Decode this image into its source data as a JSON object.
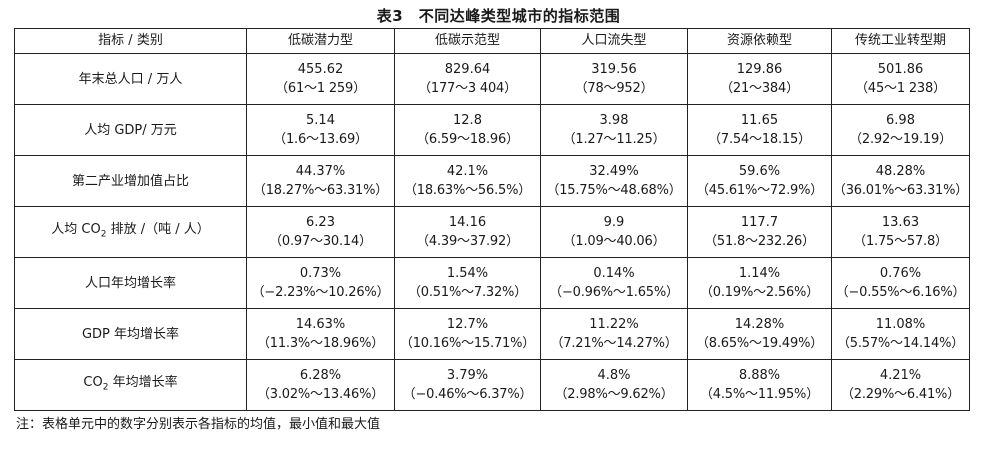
{
  "title": "表3　不同达峰类型城市的指标范围",
  "headers": [
    "指标 / 类别",
    "低碳潜力型",
    "低碳示范型",
    "人口流失型",
    "资源依赖型",
    "传统工业转型期"
  ],
  "rows": [
    {
      "label": "年末总人口 / 万人",
      "cells": [
        {
          "value": "455.62",
          "range": "（61～1 259）"
        },
        {
          "value": "829.64",
          "range": "（177～3 404）"
        },
        {
          "value": "319.56",
          "range": "（78～952）"
        },
        {
          "value": "129.86",
          "range": "（21～384）"
        },
        {
          "value": "501.86",
          "range": "（45～1 238）"
        }
      ]
    },
    {
      "label": "人均 GDP/ 万元",
      "cells": [
        {
          "value": "5.14",
          "range": "（1.6～13.69）"
        },
        {
          "value": "12.8",
          "range": "（6.59～18.96）"
        },
        {
          "value": "3.98",
          "range": "（1.27～11.25）"
        },
        {
          "value": "11.65",
          "range": "（7.54～18.15）"
        },
        {
          "value": "6.98",
          "range": "（2.92～19.19）"
        }
      ]
    },
    {
      "label": "第二产业增加值占比",
      "cells": [
        {
          "value": "44.37%",
          "range": "（18.27%～63.31%）"
        },
        {
          "value": "42.1%",
          "range": "（18.63%～56.5%）"
        },
        {
          "value": "32.49%",
          "range": "（15.75%～48.68%）"
        },
        {
          "value": "59.6%",
          "range": "（45.61%～72.9%）"
        },
        {
          "value": "48.28%",
          "range": "（36.01%～63.31%）"
        }
      ]
    },
    {
      "label_pre": "人均 CO",
      "label_sub": "2",
      "label_post": " 排放 /（吨 / 人）",
      "cells": [
        {
          "value": "6.23",
          "range": "（0.97～30.14）"
        },
        {
          "value": "14.16",
          "range": "（4.39～37.92）"
        },
        {
          "value": "9.9",
          "range": "（1.09～40.06）"
        },
        {
          "value": "117.7",
          "range": "（51.8～232.26）"
        },
        {
          "value": "13.63",
          "range": "（1.75～57.8）"
        }
      ]
    },
    {
      "label": "人口年均增长率",
      "cells": [
        {
          "value": "0.73%",
          "range": "（−2.23%～10.26%）"
        },
        {
          "value": "1.54%",
          "range": "（0.51%～7.32%）"
        },
        {
          "value": "0.14%",
          "range": "（−0.96%～1.65%）"
        },
        {
          "value": "1.14%",
          "range": "（0.19%～2.56%）"
        },
        {
          "value": "0.76%",
          "range": "（−0.55%～6.16%）"
        }
      ]
    },
    {
      "label": "GDP 年均增长率",
      "cells": [
        {
          "value": "14.63%",
          "range": "（11.3%～18.96%）"
        },
        {
          "value": "12.7%",
          "range": "（10.16%～15.71%）"
        },
        {
          "value": "11.22%",
          "range": "（7.21%～14.27%）"
        },
        {
          "value": "14.28%",
          "range": "（8.65%～19.49%）"
        },
        {
          "value": "11.08%",
          "range": "（5.57%～14.14%）"
        }
      ]
    },
    {
      "label_pre": "CO",
      "label_sub": "2",
      "label_post": " 年均增长率",
      "cells": [
        {
          "value": "6.28%",
          "range": "（3.02%～13.46%）"
        },
        {
          "value": "3.79%",
          "range": "（−0.46%～6.37%）"
        },
        {
          "value": "4.8%",
          "range": "（2.98%～9.62%）"
        },
        {
          "value": "8.88%",
          "range": "（4.5%～11.95%）"
        },
        {
          "value": "4.21%",
          "range": "（2.29%～6.41%）"
        }
      ]
    }
  ],
  "note": "注：表格单元中的数字分别表示各指标的均值，最小值和最大值"
}
